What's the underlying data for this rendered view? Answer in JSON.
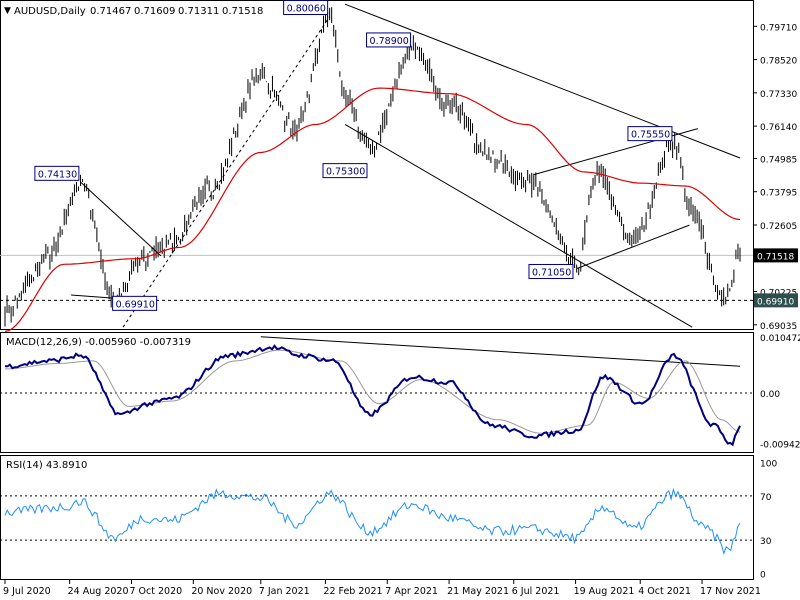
{
  "symbol_header": "AUDUSD,Daily",
  "ohlc": [
    "0.71467",
    "0.71609",
    "0.71311",
    "0.71518"
  ],
  "colors": {
    "price": "#000000",
    "ma": "#dd0000",
    "macd": "#000080",
    "signal": "#999999",
    "rsi": "#1e90ff",
    "last_price_box": "#000000",
    "support_box": "#2f4f4f",
    "label_text": "#000080"
  },
  "chart_data": [
    {
      "type": "line",
      "panel": "price",
      "title": "AUDUSD,Daily",
      "y_ticks": [
        "0.79710",
        "0.78520",
        "0.77330",
        "0.76140",
        "0.74985",
        "0.73795",
        "0.72605",
        "0.71518",
        "0.70225",
        "0.69910",
        "0.69035"
      ],
      "ylim": [
        0.6885,
        0.8065
      ],
      "x_ticks": [
        "9 Jul 2020",
        "24 Aug 2020",
        "7 Oct 2020",
        "20 Nov 2020",
        "7 Jan 2021",
        "22 Feb 2021",
        "7 Apr 2021",
        "21 May 2021",
        "6 Jul 2021",
        "19 Aug 2021",
        "4 Oct 2021",
        "17 Nov 2021"
      ],
      "last_price": "0.71518",
      "support_level": "0.69910",
      "price_keypoints": [
        {
          "t": "2020-07-09",
          "v": 0.6955
        },
        {
          "t": "2020-08-10",
          "v": 0.715
        },
        {
          "t": "2020-09-01",
          "v": 0.7413
        },
        {
          "t": "2020-09-25",
          "v": 0.6991
        },
        {
          "t": "2020-10-15",
          "v": 0.714
        },
        {
          "t": "2020-11-05",
          "v": 0.72
        },
        {
          "t": "2020-12-01",
          "v": 0.738
        },
        {
          "t": "2021-01-07",
          "v": 0.78
        },
        {
          "t": "2021-02-01",
          "v": 0.76
        },
        {
          "t": "2021-02-25",
          "v": 0.8006
        },
        {
          "t": "2021-03-09",
          "v": 0.77
        },
        {
          "t": "2021-03-25",
          "v": 0.753
        },
        {
          "t": "2021-04-25",
          "v": 0.789
        },
        {
          "t": "2021-05-21",
          "v": 0.77
        },
        {
          "t": "2021-06-20",
          "v": 0.75
        },
        {
          "t": "2021-07-20",
          "v": 0.74
        },
        {
          "t": "2021-08-20",
          "v": 0.7105
        },
        {
          "t": "2021-09-03",
          "v": 0.745
        },
        {
          "t": "2021-09-29",
          "v": 0.72
        },
        {
          "t": "2021-10-28",
          "v": 0.7555
        },
        {
          "t": "2021-11-10",
          "v": 0.73
        },
        {
          "t": "2021-12-03",
          "v": 0.6991
        },
        {
          "t": "2021-12-14",
          "v": 0.7152
        }
      ],
      "ma_keypoints": [
        {
          "t": "2020-07-09",
          "v": 0.688
        },
        {
          "t": "2020-08-20",
          "v": 0.712
        },
        {
          "t": "2020-10-10",
          "v": 0.714
        },
        {
          "t": "2020-11-10",
          "v": 0.718
        },
        {
          "t": "2021-01-07",
          "v": 0.752
        },
        {
          "t": "2021-02-15",
          "v": 0.762
        },
        {
          "t": "2021-04-01",
          "v": 0.775
        },
        {
          "t": "2021-05-21",
          "v": 0.773
        },
        {
          "t": "2021-07-15",
          "v": 0.762
        },
        {
          "t": "2021-08-25",
          "v": 0.745
        },
        {
          "t": "2021-10-05",
          "v": 0.741
        },
        {
          "t": "2021-11-05",
          "v": 0.74
        },
        {
          "t": "2021-12-14",
          "v": 0.728
        }
      ],
      "annotations": [
        {
          "label": "0.74130",
          "t": "2020-09-01",
          "v": 0.7413
        },
        {
          "label": "0.69910",
          "t": "2020-09-25",
          "v": 0.6991
        },
        {
          "label": "0.80060",
          "t": "2021-02-25",
          "v": 0.8006
        },
        {
          "label": "0.78900",
          "t": "2021-04-25",
          "v": 0.789
        },
        {
          "label": "0.75300",
          "t": "2021-03-25",
          "v": 0.753
        },
        {
          "label": "0.71050",
          "t": "2021-08-20",
          "v": 0.7105
        },
        {
          "label": "0.75550",
          "t": "2021-10-28",
          "v": 0.7555
        }
      ],
      "trendlines": [
        {
          "t1": "2020-09-01",
          "v1": 0.7413,
          "t2": "2020-10-28",
          "v2": 0.715
        },
        {
          "t1": "2020-08-25",
          "v1": 0.701,
          "t2": "2020-10-15",
          "v2": 0.6991
        },
        {
          "t1": "2020-10-01",
          "v1": 0.6895,
          "t2": "2021-02-25",
          "v2": 0.8006,
          "dashed": true
        },
        {
          "t1": "2021-03-08",
          "v1": 0.805,
          "t2": "2021-12-14",
          "v2": 0.75
        },
        {
          "t1": "2021-03-08",
          "v1": 0.762,
          "t2": "2021-11-10",
          "v2": 0.6895
        },
        {
          "t1": "2021-08-20",
          "v1": 0.7105,
          "t2": "2021-11-08",
          "v2": 0.726
        },
        {
          "t1": "2021-07-20",
          "v1": 0.744,
          "t2": "2021-11-14",
          "v2": 0.7605
        }
      ]
    },
    {
      "type": "line",
      "panel": "macd",
      "title": "MACD(12,26,9) -0.005960 -0.007319",
      "y_ticks": [
        "0.010472",
        "0.00",
        "-0.009426"
      ],
      "ylim": [
        -0.0112,
        0.0112
      ],
      "macd_keypoints": [
        {
          "t": "2020-07-09",
          "v": 0.005
        },
        {
          "t": "2020-08-10",
          "v": 0.006
        },
        {
          "t": "2020-09-01",
          "v": 0.007
        },
        {
          "t": "2020-09-29",
          "v": -0.004
        },
        {
          "t": "2020-10-20",
          "v": -0.002
        },
        {
          "t": "2020-11-05",
          "v": -0.001
        },
        {
          "t": "2020-12-15",
          "v": 0.007
        },
        {
          "t": "2021-01-15",
          "v": 0.0085
        },
        {
          "t": "2021-02-05",
          "v": 0.007
        },
        {
          "t": "2021-02-28",
          "v": 0.006
        },
        {
          "t": "2021-03-25",
          "v": -0.004
        },
        {
          "t": "2021-04-25",
          "v": 0.003
        },
        {
          "t": "2021-05-21",
          "v": 0.002
        },
        {
          "t": "2021-06-20",
          "v": -0.006
        },
        {
          "t": "2021-07-20",
          "v": -0.008
        },
        {
          "t": "2021-08-20",
          "v": -0.007
        },
        {
          "t": "2021-09-08",
          "v": 0.003
        },
        {
          "t": "2021-10-05",
          "v": -0.002
        },
        {
          "t": "2021-10-28",
          "v": 0.007
        },
        {
          "t": "2021-11-25",
          "v": -0.006
        },
        {
          "t": "2021-12-08",
          "v": -0.0095
        },
        {
          "t": "2021-12-14",
          "v": -0.006
        }
      ],
      "signal_keypoints": [
        {
          "t": "2020-07-09",
          "v": 0.0045
        },
        {
          "t": "2020-08-15",
          "v": 0.0055
        },
        {
          "t": "2020-09-10",
          "v": 0.006
        },
        {
          "t": "2020-10-05",
          "v": -0.0025
        },
        {
          "t": "2020-11-05",
          "v": -0.0015
        },
        {
          "t": "2020-12-20",
          "v": 0.006
        },
        {
          "t": "2021-01-20",
          "v": 0.008
        },
        {
          "t": "2021-03-05",
          "v": 0.006
        },
        {
          "t": "2021-04-01",
          "v": -0.002
        },
        {
          "t": "2021-05-01",
          "v": 0.0025
        },
        {
          "t": "2021-06-25",
          "v": -0.005
        },
        {
          "t": "2021-07-25",
          "v": -0.0075
        },
        {
          "t": "2021-08-28",
          "v": -0.006
        },
        {
          "t": "2021-09-15",
          "v": 0.002
        },
        {
          "t": "2021-10-10",
          "v": -0.001
        },
        {
          "t": "2021-11-05",
          "v": 0.006
        },
        {
          "t": "2021-12-01",
          "v": -0.005
        },
        {
          "t": "2021-12-14",
          "v": -0.0073
        }
      ],
      "trendline": {
        "t1": "2021-01-07",
        "v1": 0.0105,
        "t2": "2021-12-14",
        "v2": 0.005
      }
    },
    {
      "type": "line",
      "panel": "rsi",
      "title": "RSI(14) 43.8910",
      "y_ticks": [
        "100",
        "70",
        "30",
        "0"
      ],
      "ylim": [
        0,
        100
      ],
      "levels": [
        70,
        30
      ],
      "rsi_keypoints": [
        {
          "t": "2020-07-09",
          "v": 55
        },
        {
          "t": "2020-08-20",
          "v": 60
        },
        {
          "t": "2020-09-01",
          "v": 65
        },
        {
          "t": "2020-09-25",
          "v": 32
        },
        {
          "t": "2020-10-15",
          "v": 50
        },
        {
          "t": "2020-11-05",
          "v": 48
        },
        {
          "t": "2020-12-10",
          "v": 72
        },
        {
          "t": "2021-01-07",
          "v": 68
        },
        {
          "t": "2021-02-01",
          "v": 45
        },
        {
          "t": "2021-02-25",
          "v": 72
        },
        {
          "t": "2021-03-25",
          "v": 38
        },
        {
          "t": "2021-04-25",
          "v": 62
        },
        {
          "t": "2021-05-21",
          "v": 50
        },
        {
          "t": "2021-06-20",
          "v": 38
        },
        {
          "t": "2021-07-20",
          "v": 40
        },
        {
          "t": "2021-08-20",
          "v": 32
        },
        {
          "t": "2021-09-08",
          "v": 60
        },
        {
          "t": "2021-09-29",
          "v": 40
        },
        {
          "t": "2021-10-28",
          "v": 72
        },
        {
          "t": "2021-11-20",
          "v": 40
        },
        {
          "t": "2021-12-06",
          "v": 20
        },
        {
          "t": "2021-12-14",
          "v": 43.9
        }
      ]
    }
  ]
}
